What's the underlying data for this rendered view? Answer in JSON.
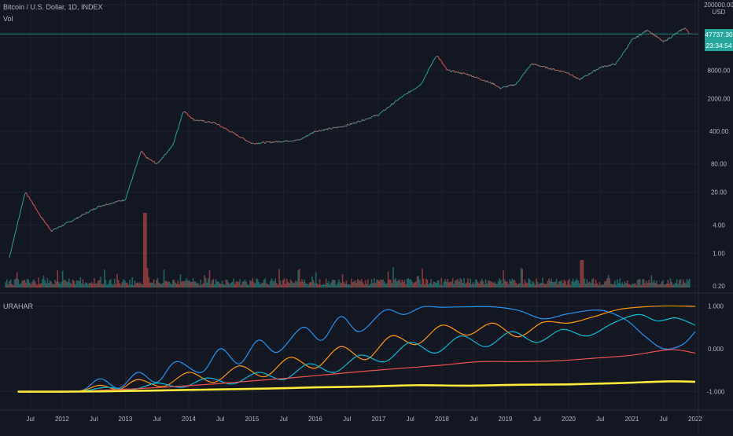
{
  "header": {
    "symbol_title": "Bitcoin / U.S. Dollar, 1D, INDEX",
    "volume_label": "Vol",
    "currency": "USD"
  },
  "price_badge": {
    "price": "47737.30",
    "countdown": "23:34:54",
    "color": "#26a69a"
  },
  "indicator": {
    "name": "URAHAR"
  },
  "colors": {
    "background": "#131722",
    "grid": "#1e222d",
    "axis_text": "#b2b5be",
    "candle_up": "#26a69a",
    "candle_down": "#ef5350"
  },
  "chart_data": [
    {
      "type": "line",
      "scale": "log",
      "title": "Bitcoin / U.S. Dollar, 1D, INDEX",
      "y_unit": "USD",
      "y_ticks": [
        "200000.00",
        "40000.00",
        "8000.00",
        "2000.00",
        "400.00",
        "80.00",
        "20.00",
        "4.00",
        "1.00",
        "0.20"
      ],
      "ylim": [
        0.2,
        200000
      ],
      "price_line": 47737.3,
      "x": [
        "2011-03",
        "2011-06",
        "2011-07",
        "2011-09",
        "2011-11",
        "2012-03",
        "2012-08",
        "2013-01",
        "2013-04",
        "2013-05",
        "2013-07",
        "2013-10",
        "2013-12",
        "2014-02",
        "2014-06",
        "2015-01",
        "2015-06",
        "2015-10",
        "2016-01",
        "2016-06",
        "2016-08",
        "2017-01",
        "2017-05",
        "2017-09",
        "2017-12",
        "2018-02",
        "2018-06",
        "2018-11",
        "2018-12",
        "2019-03",
        "2019-06",
        "2019-09",
        "2020-01",
        "2020-03",
        "2020-07",
        "2020-10",
        "2021-01",
        "2021-04",
        "2021-07",
        "2021-11",
        "2021-12"
      ],
      "y": [
        0.8,
        20,
        14,
        6,
        3,
        5,
        10,
        14,
        150,
        110,
        80,
        200,
        1100,
        700,
        600,
        220,
        240,
        260,
        400,
        500,
        580,
        900,
        2000,
        4000,
        17000,
        8000,
        6500,
        4000,
        3300,
        4000,
        11000,
        9000,
        7000,
        5000,
        9200,
        11000,
        35000,
        58000,
        32000,
        64000,
        47737.3
      ]
    },
    {
      "type": "bar",
      "name": "Vol",
      "note": "volume histogram"
    },
    {
      "type": "line",
      "title": "URAHAR",
      "y_ticks": [
        "1.000",
        "0.000",
        "-1.000"
      ],
      "ylim": [
        -1.1,
        1.1
      ],
      "x_ticks": [
        "Jul",
        "2012",
        "Jul",
        "2013",
        "Jul",
        "2014",
        "Jul",
        "2015",
        "Jul",
        "2016",
        "Jul",
        "2017",
        "Jul",
        "2018",
        "Jul",
        "2019",
        "Jul",
        "2020",
        "Jul",
        "2021",
        "Jul",
        "2022"
      ],
      "series": [
        {
          "color": "#2196f3",
          "x": [
            2011.3,
            2011.8,
            2012.3,
            2012.6,
            2012.9,
            2013.2,
            2013.5,
            2013.8,
            2014.2,
            2014.5,
            2014.8,
            2015.1,
            2015.4,
            2015.8,
            2016.1,
            2016.4,
            2016.7,
            2017.1,
            2017.4,
            2017.7,
            2018.0,
            2018.4,
            2018.8,
            2019.2,
            2019.6,
            2020.0,
            2020.5,
            2020.9,
            2021.2,
            2021.5,
            2021.8,
            2022.0
          ],
          "y": [
            -1.0,
            -1.0,
            -0.98,
            -0.7,
            -0.92,
            -0.55,
            -0.78,
            -0.3,
            -0.55,
            0.0,
            -0.35,
            0.2,
            -0.08,
            0.5,
            0.2,
            0.75,
            0.4,
            0.9,
            0.8,
            0.98,
            0.97,
            0.98,
            0.98,
            0.9,
            0.7,
            0.82,
            0.9,
            0.68,
            0.3,
            0.0,
            0.1,
            0.4
          ]
        },
        {
          "color": "#ff9800",
          "x": [
            2011.3,
            2011.8,
            2012.3,
            2012.6,
            2012.9,
            2013.2,
            2013.6,
            2014.0,
            2014.4,
            2014.8,
            2015.2,
            2015.6,
            2016.0,
            2016.4,
            2016.8,
            2017.2,
            2017.6,
            2018.0,
            2018.4,
            2018.8,
            2019.2,
            2019.6,
            2020.0,
            2020.4,
            2020.8,
            2021.2,
            2021.6,
            2022.0
          ],
          "y": [
            -1.0,
            -1.0,
            -0.98,
            -0.85,
            -0.95,
            -0.72,
            -0.88,
            -0.55,
            -0.78,
            -0.4,
            -0.65,
            -0.2,
            -0.45,
            0.05,
            -0.25,
            0.3,
            0.1,
            0.55,
            0.32,
            0.6,
            0.28,
            0.62,
            0.6,
            0.75,
            0.92,
            0.98,
            1.0,
            0.99
          ]
        },
        {
          "color": "#00bcd4",
          "x": [
            2011.3,
            2011.8,
            2012.3,
            2012.7,
            2013.1,
            2013.5,
            2013.9,
            2014.3,
            2014.7,
            2015.1,
            2015.5,
            2015.9,
            2016.3,
            2016.7,
            2017.1,
            2017.5,
            2017.9,
            2018.3,
            2018.7,
            2019.1,
            2019.5,
            2019.9,
            2020.3,
            2020.7,
            2021.1,
            2021.4,
            2021.7,
            2022.0
          ],
          "y": [
            -1.0,
            -1.0,
            -0.99,
            -0.9,
            -0.96,
            -0.8,
            -0.9,
            -0.68,
            -0.82,
            -0.55,
            -0.72,
            -0.35,
            -0.55,
            -0.15,
            -0.3,
            0.15,
            -0.1,
            0.3,
            0.05,
            0.4,
            0.15,
            0.45,
            0.3,
            0.6,
            0.8,
            0.65,
            0.72,
            0.55
          ]
        },
        {
          "color": "#ef5350",
          "x": [
            2011.3,
            2012.0,
            2012.6,
            2013.2,
            2013.8,
            2014.4,
            2015.0,
            2015.6,
            2016.2,
            2016.8,
            2017.4,
            2018.0,
            2018.6,
            2019.2,
            2019.8,
            2020.4,
            2021.0,
            2021.6,
            2022.0
          ],
          "y": [
            -1.0,
            -1.0,
            -0.97,
            -0.93,
            -0.88,
            -0.82,
            -0.75,
            -0.68,
            -0.6,
            -0.52,
            -0.45,
            -0.38,
            -0.3,
            -0.3,
            -0.28,
            -0.22,
            -0.15,
            -0.02,
            -0.1
          ]
        },
        {
          "color": "#ffeb3b",
          "x": [
            2011.3,
            2012.0,
            2012.8,
            2013.6,
            2014.4,
            2015.2,
            2016.0,
            2016.8,
            2017.6,
            2018.4,
            2019.2,
            2020.0,
            2020.8,
            2021.6,
            2022.0
          ],
          "y": [
            -1.0,
            -1.0,
            -0.99,
            -0.97,
            -0.95,
            -0.93,
            -0.9,
            -0.88,
            -0.85,
            -0.86,
            -0.84,
            -0.83,
            -0.8,
            -0.76,
            -0.77
          ]
        }
      ]
    }
  ]
}
